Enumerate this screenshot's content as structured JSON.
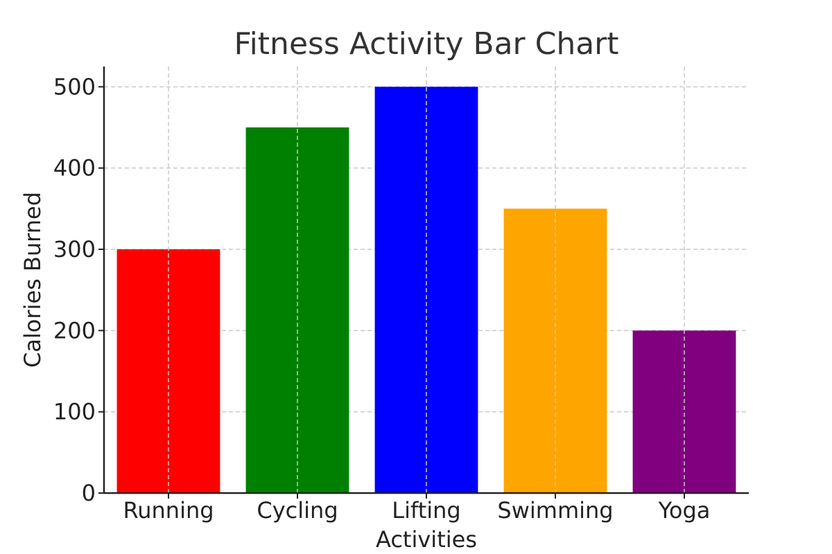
{
  "chart_data": {
    "type": "bar",
    "title": "Fitness Activity Bar Chart",
    "xlabel": "Activities",
    "ylabel": "Calories Burned",
    "categories": [
      "Running",
      "Cycling",
      "Lifting",
      "Swimming",
      "Yoga"
    ],
    "values": [
      300,
      450,
      500,
      350,
      200
    ],
    "colors": [
      "#ff0000",
      "#008000",
      "#0000ff",
      "#ffa500",
      "#800080"
    ],
    "ylim": [
      0,
      525
    ],
    "yticks": [
      0,
      100,
      200,
      300,
      400,
      500
    ],
    "grid": true,
    "legend": "none"
  }
}
